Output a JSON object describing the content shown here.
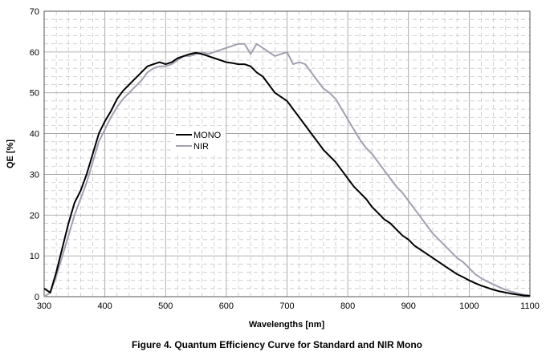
{
  "figure_caption": "Figure 4. Quantum Efficiency Curve for Standard and NIR Mono",
  "chart_data": {
    "type": "line",
    "title": "",
    "xlabel": "Wavelengths [nm]",
    "ylabel": "QE [%]",
    "xlim": [
      300,
      1100
    ],
    "ylim": [
      0,
      70
    ],
    "x_ticks": [
      300,
      400,
      500,
      600,
      700,
      800,
      900,
      1000,
      1100
    ],
    "y_ticks": [
      0,
      10,
      20,
      30,
      40,
      50,
      60,
      70
    ],
    "grid": true,
    "legend_position": "center-left",
    "series": [
      {
        "name": "MONO",
        "color": "#000000",
        "x": [
          300,
          310,
          320,
          330,
          340,
          350,
          360,
          370,
          380,
          390,
          400,
          410,
          420,
          430,
          440,
          450,
          460,
          470,
          480,
          490,
          500,
          510,
          520,
          530,
          540,
          550,
          560,
          570,
          580,
          590,
          600,
          610,
          620,
          630,
          640,
          650,
          660,
          670,
          680,
          690,
          700,
          710,
          720,
          730,
          740,
          750,
          760,
          770,
          780,
          790,
          800,
          810,
          820,
          830,
          840,
          850,
          860,
          870,
          880,
          890,
          900,
          910,
          920,
          930,
          940,
          950,
          960,
          970,
          980,
          990,
          1000,
          1010,
          1020,
          1030,
          1040,
          1050,
          1060,
          1070,
          1080,
          1090,
          1100
        ],
        "values": [
          2,
          1,
          6,
          12,
          18,
          23,
          26,
          30,
          35,
          40,
          43,
          45.5,
          48.5,
          50.5,
          52,
          53.5,
          55,
          56.5,
          57,
          57.5,
          57,
          57.5,
          58.5,
          59,
          59.5,
          59.8,
          59.5,
          59,
          58.5,
          58,
          57.5,
          57.3,
          57,
          57,
          56.5,
          55,
          54,
          52,
          50,
          49,
          48,
          46,
          44,
          42,
          40,
          38,
          36,
          34.5,
          33,
          31,
          29,
          27,
          25.5,
          24,
          22,
          20.5,
          19,
          18,
          16.5,
          15,
          14,
          12.5,
          11.5,
          10.5,
          9.5,
          8.5,
          7.5,
          6.5,
          5.5,
          4.8,
          4,
          3.3,
          2.7,
          2.2,
          1.7,
          1.3,
          1,
          0.7,
          0.5,
          0.3,
          0.2
        ]
      },
      {
        "name": "NIR",
        "color": "#a0a0b0",
        "x": [
          300,
          310,
          320,
          330,
          340,
          350,
          360,
          370,
          380,
          390,
          400,
          410,
          420,
          430,
          440,
          450,
          460,
          470,
          480,
          490,
          500,
          510,
          520,
          530,
          540,
          550,
          560,
          570,
          580,
          590,
          600,
          610,
          620,
          630,
          640,
          650,
          660,
          670,
          680,
          690,
          700,
          710,
          720,
          730,
          740,
          750,
          760,
          770,
          780,
          790,
          800,
          810,
          820,
          830,
          840,
          850,
          860,
          870,
          880,
          890,
          900,
          910,
          920,
          930,
          940,
          950,
          960,
          970,
          980,
          990,
          1000,
          1010,
          1020,
          1030,
          1040,
          1050,
          1060,
          1070,
          1080,
          1090,
          1100
        ],
        "values": [
          0,
          1,
          5,
          10,
          15,
          20,
          24,
          28,
          33,
          38,
          41,
          44,
          46.5,
          48.5,
          50,
          51.5,
          53,
          55,
          56,
          56.5,
          56.5,
          57,
          58,
          59,
          59,
          59.5,
          60,
          59.5,
          60,
          60.5,
          61,
          61.5,
          62,
          62,
          59.5,
          62,
          61,
          60,
          59,
          59.5,
          60,
          57,
          57.5,
          57,
          55,
          53,
          51,
          50,
          48.5,
          46,
          43.5,
          41,
          38.5,
          36.5,
          35,
          33,
          31,
          29,
          27,
          25.5,
          23.5,
          21.5,
          19.5,
          17.5,
          15.5,
          14,
          12.5,
          11,
          9.5,
          8.5,
          7,
          5.5,
          4.5,
          3.7,
          3,
          2.3,
          1.7,
          1.2,
          0.8,
          0.5,
          0.3
        ]
      }
    ]
  }
}
